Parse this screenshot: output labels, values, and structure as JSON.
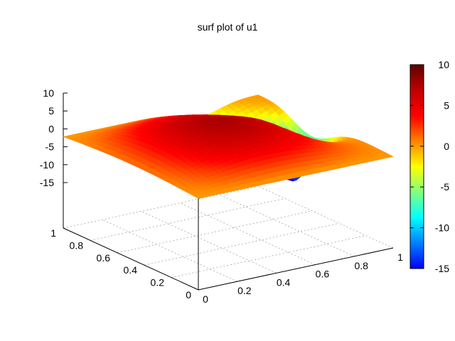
{
  "chart_data": {
    "type": "surface",
    "title": "surf plot of u1",
    "x_ticks": [
      "0",
      "0.2",
      "0.4",
      "0.6",
      "0.8",
      "1"
    ],
    "y_ticks": [
      "0",
      "0.2",
      "0.4",
      "0.6",
      "0.8",
      "1"
    ],
    "z_ticks": [
      "10",
      "5",
      "0",
      "-5",
      "-10",
      "-15"
    ],
    "zlim": [
      -15,
      10
    ],
    "colorbar": {
      "range": [
        -15,
        10
      ],
      "ticks": [
        "10",
        "5",
        "0",
        "-5",
        "-10",
        "-15"
      ],
      "colormap": "jet"
    },
    "grid": true,
    "surface_samples": {
      "description_free": true,
      "x": [
        0,
        0.25,
        0.5,
        0.75,
        1
      ],
      "y": [
        0,
        0.25,
        0.5,
        0.75,
        1
      ],
      "z": [
        [
          0,
          0,
          0,
          0,
          0
        ],
        [
          5.6,
          3.2,
          1.2,
          0.4,
          0
        ],
        [
          7.9,
          4.0,
          1.0,
          0.2,
          0
        ],
        [
          5.6,
          2.2,
          -6.0,
          -2.4,
          0
        ],
        [
          0,
          -0.8,
          -3.8,
          -16.0,
          0
        ]
      ]
    }
  }
}
